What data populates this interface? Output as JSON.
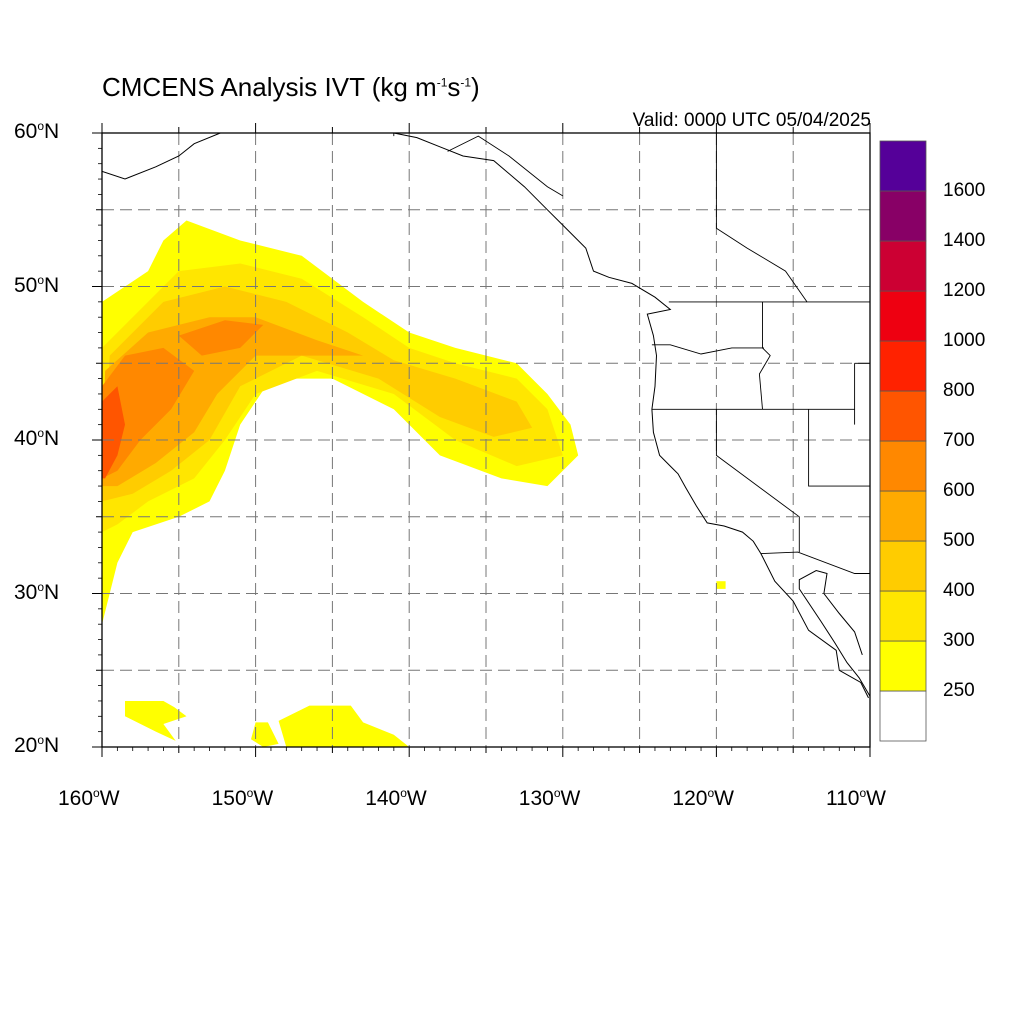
{
  "title": {
    "text": "CMCENS Analysis IVT (kg m",
    "exp1": "-1",
    "mid": "s",
    "exp2": "-1",
    "end": ")"
  },
  "valid": "Valid: 0000 UTC 05/04/2025",
  "colors": {
    "levels": [
      "#ffffff",
      "#ffff00",
      "#ffe600",
      "#ffcc00",
      "#ffaa00",
      "#ff8800",
      "#ff5500",
      "#ff2200",
      "#ee0011",
      "#cc0033",
      "#880066",
      "#550099"
    ]
  },
  "chart_data": {
    "type": "heatmap",
    "projection": "cylindrical-equidistant",
    "xlim": [
      -160,
      -110
    ],
    "ylim": [
      20,
      60
    ],
    "grid": true,
    "x_ticks": [
      {
        "deg": "160",
        "dir": "W"
      },
      {
        "deg": "150",
        "dir": "W"
      },
      {
        "deg": "140",
        "dir": "W"
      },
      {
        "deg": "130",
        "dir": "W"
      },
      {
        "deg": "120",
        "dir": "W"
      },
      {
        "deg": "110",
        "dir": "W"
      }
    ],
    "y_ticks": [
      {
        "deg": "20",
        "dir": "N"
      },
      {
        "deg": "30",
        "dir": "N"
      },
      {
        "deg": "40",
        "dir": "N"
      },
      {
        "deg": "50",
        "dir": "N"
      },
      {
        "deg": "60",
        "dir": "N"
      }
    ],
    "colorbar": {
      "levels": [
        "250",
        "300",
        "400",
        "500",
        "600",
        "700",
        "800",
        "1000",
        "1200",
        "1400",
        "1600"
      ]
    },
    "ivt_features": [
      {
        "name": "river-main",
        "level": 1,
        "poly": [
          [
            -157,
            51
          ],
          [
            -156,
            53
          ],
          [
            -154.5,
            54.3
          ],
          [
            -151,
            53
          ],
          [
            -147,
            52
          ],
          [
            -143,
            49
          ],
          [
            -140,
            47
          ],
          [
            -137,
            46
          ],
          [
            -133,
            45
          ],
          [
            -131,
            43
          ],
          [
            -129.5,
            41
          ],
          [
            -129,
            39
          ],
          [
            -131,
            37
          ],
          [
            -134,
            37.5
          ],
          [
            -138,
            39
          ],
          [
            -141,
            42
          ],
          [
            -145,
            44
          ],
          [
            -149,
            44
          ],
          [
            -151,
            41
          ],
          [
            -152,
            38
          ],
          [
            -153,
            36
          ],
          [
            -155,
            35
          ],
          [
            -158,
            34
          ],
          [
            -159,
            32
          ],
          [
            -160,
            28
          ],
          [
            -160,
            49
          ]
        ]
      },
      {
        "name": "river-l2",
        "level": 2,
        "poly": [
          [
            -159,
            47
          ],
          [
            -155,
            51
          ],
          [
            -151,
            51.5
          ],
          [
            -147,
            50.5
          ],
          [
            -143,
            48
          ],
          [
            -140,
            46
          ],
          [
            -137,
            45
          ],
          [
            -133,
            44
          ],
          [
            -131,
            42
          ],
          [
            -130,
            39
          ],
          [
            -133,
            38.3
          ],
          [
            -137,
            40
          ],
          [
            -141,
            43
          ],
          [
            -146,
            44.5
          ],
          [
            -150,
            43
          ],
          [
            -152,
            40
          ],
          [
            -154,
            37.5
          ],
          [
            -157,
            36
          ],
          [
            -159,
            34.5
          ],
          [
            -160,
            34
          ],
          [
            -160,
            46
          ]
        ]
      },
      {
        "name": "river-l3",
        "level": 3,
        "poly": [
          [
            -159.5,
            45.5
          ],
          [
            -156,
            49
          ],
          [
            -152,
            50
          ],
          [
            -148,
            49
          ],
          [
            -144,
            47
          ],
          [
            -141,
            45.2
          ],
          [
            -137,
            44
          ],
          [
            -133,
            42.5
          ],
          [
            -132,
            40.8
          ],
          [
            -134.5,
            40.2
          ],
          [
            -138,
            41.5
          ],
          [
            -142,
            44
          ],
          [
            -147,
            45.5
          ],
          [
            -151,
            43.5
          ],
          [
            -153,
            40
          ],
          [
            -155.5,
            38
          ],
          [
            -158,
            36.5
          ],
          [
            -160,
            36
          ]
        ]
      },
      {
        "name": "river-l4",
        "level": 4,
        "poly": [
          [
            -159.8,
            44.5
          ],
          [
            -157,
            47
          ],
          [
            -153,
            48
          ],
          [
            -150,
            48
          ],
          [
            -146,
            46.5
          ],
          [
            -143,
            45.5
          ],
          [
            -146,
            45.5
          ],
          [
            -150,
            45.5
          ],
          [
            -152.5,
            43
          ],
          [
            -154,
            40.5
          ],
          [
            -156.5,
            38.5
          ],
          [
            -159,
            37
          ],
          [
            -160,
            37
          ]
        ]
      },
      {
        "name": "river-l5",
        "level": 5,
        "poly": [
          [
            -160,
            43.5
          ],
          [
            -158.5,
            45.5
          ],
          [
            -156,
            46
          ],
          [
            -154,
            44.5
          ],
          [
            -155.5,
            42
          ],
          [
            -157.5,
            40
          ],
          [
            -159,
            38
          ],
          [
            -160,
            37.5
          ]
        ]
      },
      {
        "name": "river-l5b",
        "level": 5,
        "poly": [
          [
            -155,
            46.8
          ],
          [
            -152,
            47.8
          ],
          [
            -149.5,
            47.5
          ],
          [
            -151,
            46
          ],
          [
            -153.5,
            45.5
          ]
        ]
      },
      {
        "name": "river-l6",
        "level": 6,
        "poly": [
          [
            -160,
            42.5
          ],
          [
            -159,
            43.5
          ],
          [
            -158.5,
            41
          ],
          [
            -159,
            39
          ],
          [
            -159.8,
            37.5
          ],
          [
            -160,
            37.5
          ]
        ]
      },
      {
        "name": "south-patch-1",
        "level": 1,
        "poly": [
          [
            -158.5,
            23
          ],
          [
            -156,
            23
          ],
          [
            -155.3,
            22.6
          ],
          [
            -154.5,
            22
          ],
          [
            -156,
            21.5
          ],
          [
            -155.2,
            20.4
          ],
          [
            -156.5,
            21
          ],
          [
            -158.5,
            22
          ]
        ]
      },
      {
        "name": "south-patch-2",
        "level": 1,
        "poly": [
          [
            -146.5,
            22.7
          ],
          [
            -143.8,
            22.7
          ],
          [
            -143,
            21.6
          ],
          [
            -141,
            20.8
          ],
          [
            -140,
            20
          ],
          [
            -148,
            20
          ],
          [
            -148.5,
            21.7
          ]
        ]
      },
      {
        "name": "south-patch-3",
        "level": 1,
        "poly": [
          [
            -150,
            21.6
          ],
          [
            -149.2,
            21.6
          ],
          [
            -148.5,
            20.2
          ],
          [
            -149.5,
            20
          ],
          [
            -150.3,
            20.5
          ]
        ]
      },
      {
        "name": "speck-baja",
        "level": 1,
        "poly": [
          [
            -120,
            30.8
          ],
          [
            -119.4,
            30.8
          ],
          [
            -119.4,
            30.3
          ],
          [
            -120,
            30.3
          ]
        ]
      }
    ],
    "coastline": [
      [
        -110,
        23.3
      ],
      [
        -110.7,
        24.5
      ],
      [
        -111.5,
        25.5
      ],
      [
        -112.3,
        26.8
      ],
      [
        -113.2,
        28.2
      ],
      [
        -114.6,
        30.3
      ],
      [
        -114.6,
        30.9
      ],
      [
        -113.5,
        31.5
      ],
      [
        -112.8,
        31.3
      ],
      [
        -113,
        30
      ],
      [
        -112,
        28.7
      ],
      [
        -111,
        27.5
      ],
      [
        -110.5,
        26
      ]
    ],
    "west_coast": [
      [
        -110.1,
        23.2
      ],
      [
        -110.6,
        24.2
      ],
      [
        -112.0,
        25.0
      ],
      [
        -112.2,
        26.3
      ],
      [
        -114.0,
        27.6
      ],
      [
        -115.0,
        29.5
      ],
      [
        -116.2,
        30.8
      ],
      [
        -117.1,
        32.6
      ],
      [
        -117.6,
        33.4
      ],
      [
        -118.3,
        34.0
      ],
      [
        -119.5,
        34.4
      ],
      [
        -120.6,
        34.6
      ],
      [
        -121.3,
        35.7
      ],
      [
        -122.0,
        36.9
      ],
      [
        -122.5,
        37.8
      ],
      [
        -123.0,
        38.3
      ],
      [
        -123.7,
        39.0
      ],
      [
        -124.1,
        40.5
      ],
      [
        -124.2,
        42.0
      ],
      [
        -124.0,
        43.5
      ],
      [
        -123.9,
        45.5
      ],
      [
        -124.1,
        46.8
      ],
      [
        -124.5,
        48.2
      ],
      [
        -123.0,
        48.5
      ],
      [
        -124.0,
        49.3
      ],
      [
        -125.5,
        50.2
      ],
      [
        -127.0,
        50.6
      ],
      [
        -128.0,
        51.0
      ],
      [
        -128.5,
        52.5
      ],
      [
        -130.0,
        54.0
      ],
      [
        -131.0,
        55.0
      ],
      [
        -132.5,
        56.5
      ],
      [
        -134.5,
        58.2
      ],
      [
        -136.5,
        58.5
      ],
      [
        -138.0,
        59.1
      ],
      [
        -139.5,
        59.7
      ],
      [
        -141.0,
        60.0
      ]
    ],
    "alaska_coast": [
      [
        -160,
        57.5
      ],
      [
        -158.5,
        57.0
      ],
      [
        -156.5,
        57.8
      ],
      [
        -155,
        58.5
      ],
      [
        -154,
        59.3
      ],
      [
        -152.3,
        60.0
      ]
    ],
    "borders": [
      [
        [
          -123.1,
          49.0
        ],
        [
          -110,
          49.0
        ]
      ],
      [
        [
          -117.0,
          49.0
        ],
        [
          -117.0,
          46.0
        ],
        [
          -116.5,
          45.5
        ],
        [
          -117.2,
          44.3
        ],
        [
          -117.0,
          42.0
        ]
      ],
      [
        [
          -124.2,
          46.2
        ],
        [
          -123.0,
          46.2
        ],
        [
          -121.0,
          45.6
        ],
        [
          -119.0,
          46.0
        ],
        [
          -116.9,
          46.0
        ]
      ],
      [
        [
          -124.2,
          42.0
        ],
        [
          -111.0,
          42.0
        ]
      ],
      [
        [
          -120.0,
          42.0
        ],
        [
          -120.0,
          39.0
        ],
        [
          -114.6,
          35.0
        ],
        [
          -114.6,
          32.7
        ]
      ],
      [
        [
          -114.0,
          42.0
        ],
        [
          -114.0,
          37.0
        ],
        [
          -110,
          37.0
        ]
      ],
      [
        [
          -117.1,
          32.6
        ],
        [
          -114.7,
          32.7
        ],
        [
          -111.0,
          31.3
        ],
        [
          -110,
          31.3
        ]
      ],
      [
        [
          -111.0,
          45.0
        ],
        [
          -110,
          45.0
        ]
      ],
      [
        [
          -111.0,
          45.0
        ],
        [
          -111.0,
          41.0
        ]
      ],
      [
        [
          -137.5,
          58.8
        ],
        [
          -135.5,
          59.8
        ],
        [
          -133.5,
          58.5
        ],
        [
          -131.0,
          56.5
        ],
        [
          -130.0,
          55.9
        ]
      ],
      [
        [
          -141.0,
          60.0
        ],
        [
          -141.0,
          59.8
        ]
      ],
      [
        [
          -120,
          60
        ],
        [
          -120,
          53.8
        ],
        [
          -118,
          52.5
        ],
        [
          -115.5,
          51
        ],
        [
          -114.1,
          49
        ]
      ],
      [
        [
          -110,
          58.5
        ],
        [
          -110,
          60
        ]
      ]
    ]
  }
}
